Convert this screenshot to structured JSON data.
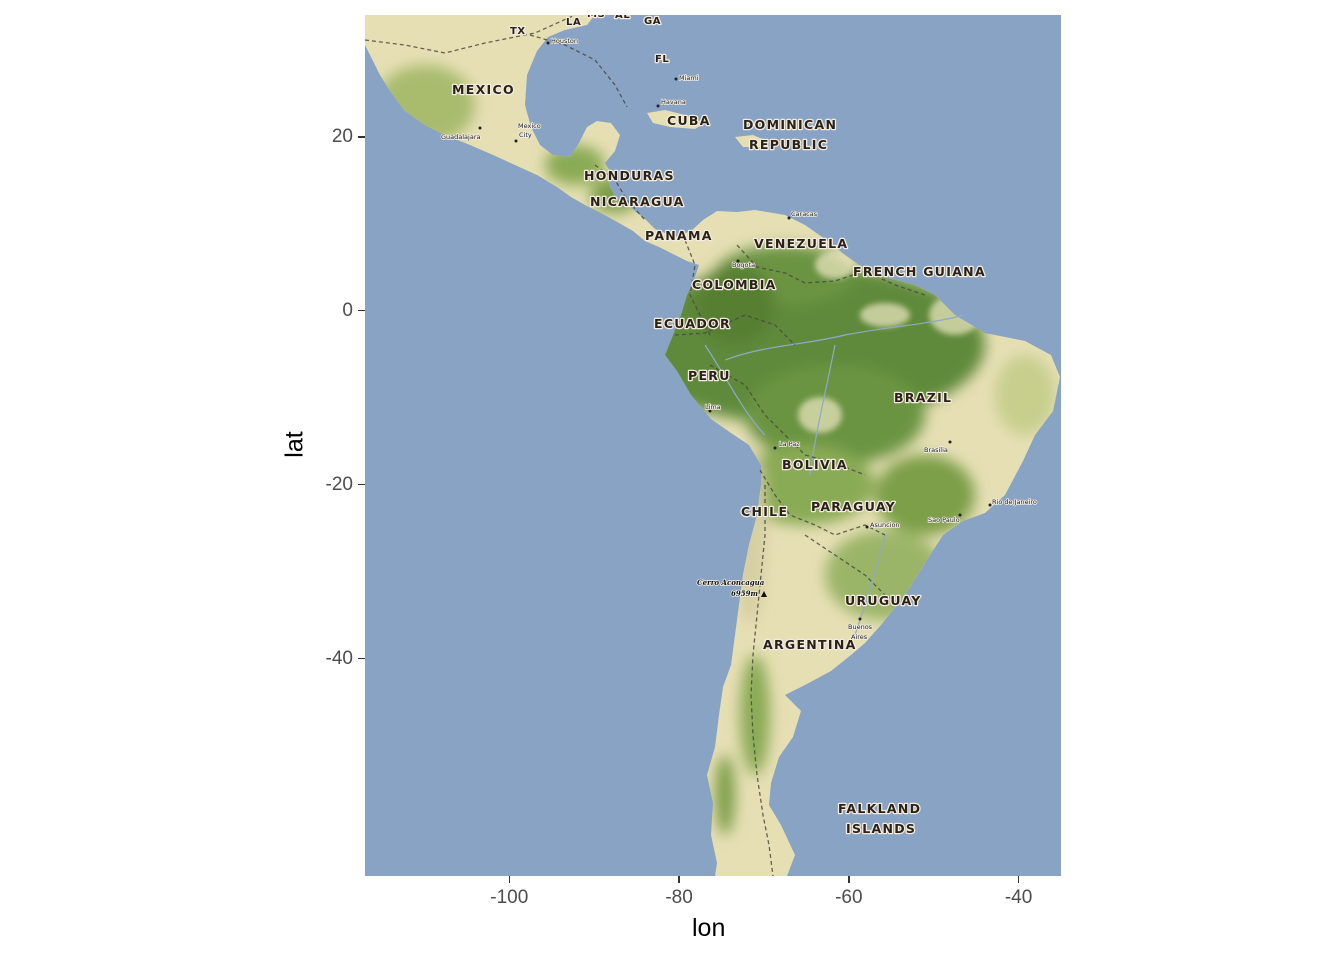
{
  "axes": {
    "x_title": "lon",
    "y_title": "lat",
    "x_ticks": [
      {
        "value": -100,
        "label": "-100"
      },
      {
        "value": -80,
        "label": "-80"
      },
      {
        "value": -60,
        "label": "-60"
      },
      {
        "value": -40,
        "label": "-40"
      }
    ],
    "y_ticks": [
      {
        "value": 20,
        "label": "20"
      },
      {
        "value": 0,
        "label": "0"
      },
      {
        "value": -20,
        "label": "-20"
      },
      {
        "value": -40,
        "label": "-40"
      }
    ],
    "lon_range": [
      -117,
      -35
    ],
    "lat_range": [
      -65,
      34
    ]
  },
  "colors": {
    "ocean": "#88a3c3",
    "land_dry": "#e6dfb4",
    "land_green": "#9bb567",
    "forest": "#5f8a3a",
    "axis_text": "#4d4d4d"
  },
  "labels": {
    "mexico": "MEXICO",
    "cuba": "CUBA",
    "dominican_1": "DOMINICAN",
    "dominican_2": "REPUBLIC",
    "honduras": "HONDURAS",
    "nicaragua": "NICARAGUA",
    "panama": "PANAMA",
    "venezuela": "VENEZUELA",
    "french_guiana": "FRENCH GUIANA",
    "colombia": "COLOMBIA",
    "ecuador": "ECUADOR",
    "peru": "PERU",
    "brazil": "BRAZIL",
    "bolivia": "BOLIVIA",
    "paraguay": "PARAGUAY",
    "chile": "CHILE",
    "uruguay": "URUGUAY",
    "argentina": "ARGENTINA",
    "falkland_1": "FALKLAND",
    "falkland_2": "ISLANDS",
    "tx": "TX",
    "la": "LA",
    "ms": "MS",
    "al": "AL",
    "ga": "GA",
    "fl": "FL"
  },
  "cities": {
    "houston": "Houston",
    "miami": "Miami",
    "havana": "Havana",
    "guadalajara": "Guadalajara",
    "mexico_1": "Mexico",
    "mexico_2": "City",
    "caracas": "Caracas",
    "bogota": "Bogota",
    "lima": "Lima",
    "la_paz": "La Paz",
    "brasilia": "Brasilia",
    "rio": "Rio de Janeiro",
    "sao_paulo": "Sao Paulo",
    "asuncion": "Asuncion",
    "buenos_1": "Buenos",
    "buenos_2": "Aires",
    "aconcagua_1": "Cerro Aconcagua",
    "aconcagua_2": "6959m"
  }
}
